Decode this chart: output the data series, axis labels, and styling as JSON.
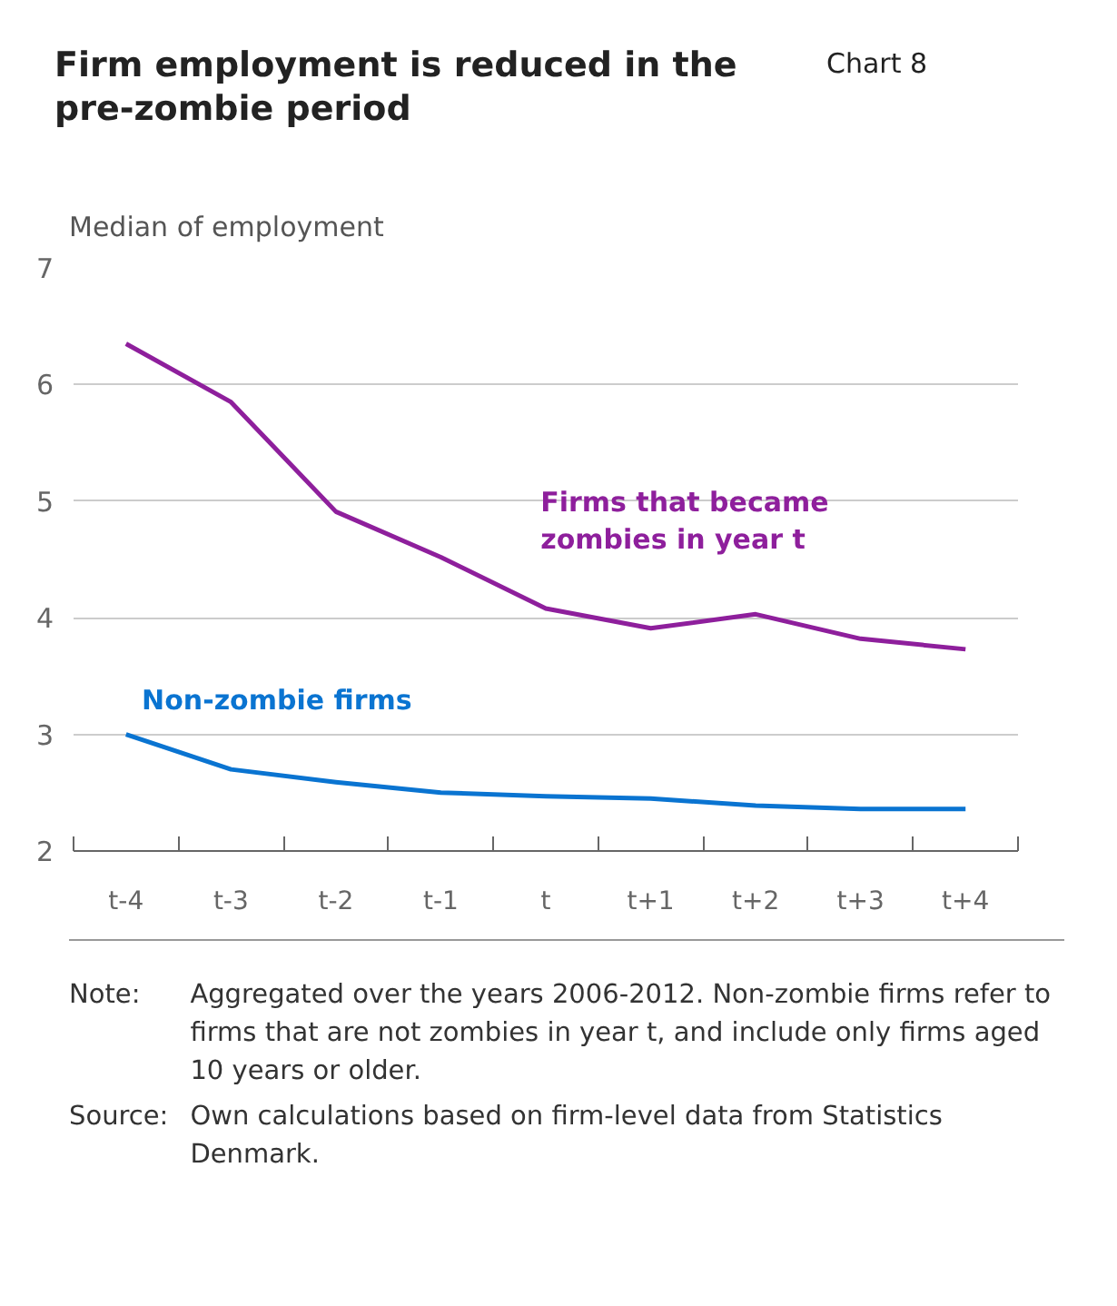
{
  "chart_data": {
    "type": "line",
    "title": "Firm employment is reduced in the pre-zombie period",
    "ylabel": "Median of employment",
    "categories": [
      "t-4",
      "t-3",
      "t-2",
      "t-1",
      "t",
      "t+1",
      "t+2",
      "t+3",
      "t+4"
    ],
    "series": [
      {
        "name": "Firms that became zombies in year t",
        "color": "#8e1f9c",
        "values": [
          6.35,
          5.85,
          4.91,
          4.52,
          4.08,
          3.91,
          4.03,
          3.82,
          3.73
        ]
      },
      {
        "name": "Non-zombie firms",
        "color": "#0a74d1",
        "values": [
          3.0,
          2.7,
          2.59,
          2.5,
          2.47,
          2.45,
          2.39,
          2.36,
          2.36
        ]
      }
    ],
    "ylim": [
      2,
      7
    ],
    "yticks": [
      2,
      3,
      4,
      5,
      6,
      7
    ],
    "grid": "y",
    "annotations": [
      "Chart 8",
      "Note: Aggregated over the years 2006-2012. Non-zombie firms refer to firms that are not zombies in year t, and include only firms aged 10 years or older.",
      "Source: Own calculations based on firm-level data from Statistics Denmark."
    ]
  }
}
